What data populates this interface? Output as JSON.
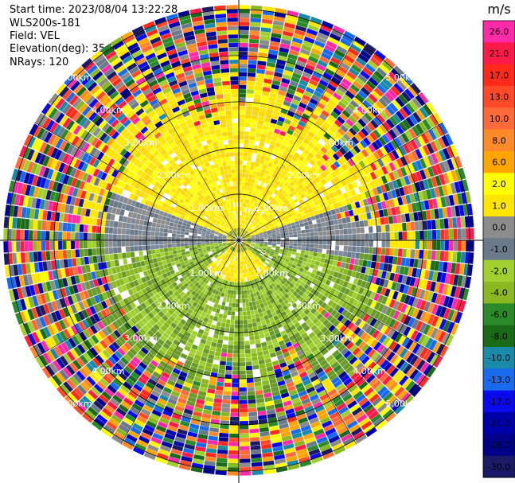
{
  "info": {
    "start_time": "Start time: 2023/08/04 13:22:28",
    "instrument": "WLS200s-181",
    "field": "Field: VEL",
    "elevation": "Elevation(deg): 35.30",
    "nrays": "NRays: 120"
  },
  "colorbar": {
    "title": "m/s",
    "ticks": [
      "26.0",
      "21.0",
      "17.0",
      "13.0",
      "10.0",
      "8.0",
      "6.0",
      "2.0",
      "1.0",
      "0.0",
      "-1.0",
      "-2.0",
      "-4.0",
      "-6.0",
      "-8.0",
      "-10.0",
      "-13.0",
      "-17.0",
      "-21.0",
      "-26.0",
      "-30.0"
    ],
    "colors": [
      "#ff2aa8",
      "#ff1a4a",
      "#ff2a1a",
      "#ff4a2a",
      "#ff6a3a",
      "#ff8a2a",
      "#ffa500",
      "#ffff00",
      "#ffe600",
      "#8c8c8c",
      "#6a7a8a",
      "#a0d030",
      "#8ab820",
      "#2a8a2a",
      "#1a6a1a",
      "#1a8aaa",
      "#1a6aee",
      "#0a0aee",
      "#0000aa",
      "#000088",
      "#1a1a66"
    ]
  },
  "ring_labels": [
    "1.00km",
    "2.00km",
    "3.00km",
    "4.00km",
    "5.00km"
  ],
  "chart_data": {
    "type": "heatmap",
    "title": "",
    "field": "VEL",
    "units": "m/s",
    "elevation_deg": 35.3,
    "n_rays": 120,
    "range_rings_km": [
      1,
      2,
      3,
      4,
      5
    ],
    "color_scale": [
      -30,
      26
    ],
    "colorbar_ticks": [
      26.0,
      21.0,
      17.0,
      13.0,
      10.0,
      8.0,
      6.0,
      2.0,
      1.0,
      0.0,
      -1.0,
      -2.0,
      -4.0,
      -6.0,
      -8.0,
      -10.0,
      -13.0,
      -17.0,
      -21.0,
      -26.0,
      -30.0
    ],
    "grid": true
  }
}
